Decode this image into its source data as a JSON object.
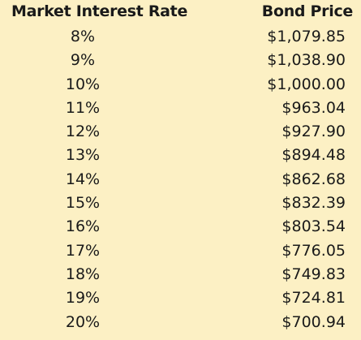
{
  "table": {
    "headers": {
      "rate": "Market Interest Rate",
      "price": "Bond Price"
    },
    "rows": [
      {
        "rate": "8%",
        "price": "$1,079.85"
      },
      {
        "rate": "9%",
        "price": "$1,038.90"
      },
      {
        "rate": "10%",
        "price": "$1,000.00"
      },
      {
        "rate": "11%",
        "price": "$963.04"
      },
      {
        "rate": "12%",
        "price": "$927.90"
      },
      {
        "rate": "13%",
        "price": "$894.48"
      },
      {
        "rate": "14%",
        "price": "$862.68"
      },
      {
        "rate": "15%",
        "price": "$832.39"
      },
      {
        "rate": "16%",
        "price": "$803.54"
      },
      {
        "rate": "17%",
        "price": "$776.05"
      },
      {
        "rate": "18%",
        "price": "$749.83"
      },
      {
        "rate": "19%",
        "price": "$724.81"
      },
      {
        "rate": "20%",
        "price": "$700.94"
      }
    ]
  },
  "colors": {
    "background": "#fcf0c4",
    "text": "#1a1a1a"
  }
}
